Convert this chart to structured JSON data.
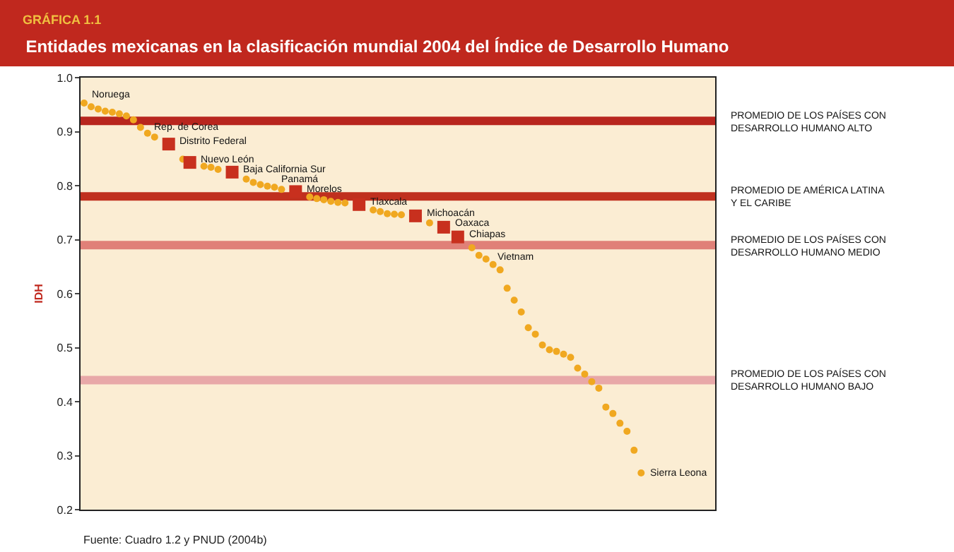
{
  "chart_data": {
    "type": "scatter",
    "title": "Entidades mexicanas en la clasificación mundial 2004 del Índice de Desarrollo Humano",
    "ylabel": "IDH",
    "annotations": [
      "GRÁFICA 1.1",
      "Fuente: Cuadro 1.2 y PNUD (2004b)"
    ],
    "categories": [
      null,
      null,
      null,
      null,
      null,
      null,
      null,
      null,
      null,
      null,
      null,
      null,
      null,
      null,
      null,
      null,
      null,
      null,
      null,
      null,
      null,
      null,
      null,
      null,
      null,
      null,
      null,
      null,
      null,
      null,
      null,
      null,
      null,
      null,
      null,
      null,
      null,
      null,
      null,
      null,
      null,
      null,
      null,
      null,
      null,
      null,
      null,
      null,
      null,
      null,
      null,
      null,
      null,
      null,
      null,
      null,
      null,
      null,
      null,
      null,
      null,
      null,
      null,
      null,
      null,
      null,
      null,
      null,
      null,
      null,
      null,
      null,
      null,
      null,
      null,
      null,
      null,
      null,
      null,
      null,
      null,
      null,
      null,
      null,
      null,
      null,
      null,
      null,
      null,
      null
    ],
    "series": [
      {
        "color": "#f0a820",
        "marker": "circle",
        "values": [
          null,
          0.946,
          0.942,
          0.938,
          0.936,
          0.933,
          0.929,
          0.922,
          0.908,
          0.897,
          null,
          null,
          null,
          null,
          0.849,
          null,
          null,
          0.836,
          0.834,
          0.83,
          null,
          null,
          null,
          0.812,
          0.806,
          0.802,
          0.799,
          0.797,
          null,
          null,
          null,
          null,
          0.779,
          0.776,
          0.774,
          0.771,
          0.769,
          0.768,
          null,
          null,
          null,
          0.755,
          0.752,
          0.748,
          0.747,
          0.746,
          null,
          null,
          null,
          0.731,
          null,
          null,
          null,
          null,
          null,
          null,
          0.671,
          0.664,
          0.654,
          0.644,
          0.61,
          0.588,
          0.566,
          0.537,
          0.525,
          0.505,
          0.496,
          0.493,
          0.488,
          0.482,
          0.462,
          0.451,
          0.437,
          0.425,
          0.39,
          0.378,
          0.36,
          0.345,
          0.31,
          null,
          null,
          null,
          null,
          null,
          null,
          null,
          null,
          null,
          null,
          null
        ]
      },
      {
        "name": "Noruega",
        "color": "#f0a820",
        "marker": "circle",
        "values": [
          0.953,
          null,
          null,
          null,
          null,
          null,
          null,
          null,
          null,
          null,
          null,
          null,
          null,
          null,
          null,
          null,
          null,
          null,
          null,
          null,
          null,
          null,
          null,
          null,
          null,
          null,
          null,
          null,
          null,
          null,
          null,
          null,
          null,
          null,
          null,
          null,
          null,
          null,
          null,
          null,
          null,
          null,
          null,
          null,
          null,
          null,
          null,
          null,
          null,
          null,
          null,
          null,
          null,
          null,
          null,
          null,
          null,
          null,
          null,
          null,
          null,
          null,
          null,
          null,
          null,
          null,
          null,
          null,
          null,
          null,
          null,
          null,
          null,
          null,
          null,
          null,
          null,
          null,
          null,
          null,
          null,
          null,
          null,
          null,
          null,
          null,
          null,
          null,
          null,
          null
        ]
      },
      {
        "name": "Rep. de Corea",
        "color": "#f0a820",
        "marker": "circle",
        "values": [
          null,
          null,
          null,
          null,
          null,
          null,
          null,
          null,
          null,
          null,
          0.89,
          null,
          null,
          null,
          null,
          null,
          null,
          null,
          null,
          null,
          null,
          null,
          null,
          null,
          null,
          null,
          null,
          null,
          null,
          null,
          null,
          null,
          null,
          null,
          null,
          null,
          null,
          null,
          null,
          null,
          null,
          null,
          null,
          null,
          null,
          null,
          null,
          null,
          null,
          null,
          null,
          null,
          null,
          null,
          null,
          null,
          null,
          null,
          null,
          null,
          null,
          null,
          null,
          null,
          null,
          null,
          null,
          null,
          null,
          null,
          null,
          null,
          null,
          null,
          null,
          null,
          null,
          null,
          null,
          null,
          null,
          null,
          null,
          null,
          null,
          null,
          null,
          null,
          null,
          null
        ]
      },
      {
        "name": "Distrito Federal",
        "color": "#c8301e",
        "marker": "square",
        "values": [
          null,
          null,
          null,
          null,
          null,
          null,
          null,
          null,
          null,
          null,
          null,
          null,
          0.877,
          null,
          null,
          null,
          null,
          null,
          null,
          null,
          null,
          null,
          null,
          null,
          null,
          null,
          null,
          null,
          null,
          null,
          null,
          null,
          null,
          null,
          null,
          null,
          null,
          null,
          null,
          null,
          null,
          null,
          null,
          null,
          null,
          null,
          null,
          null,
          null,
          null,
          null,
          null,
          null,
          null,
          null,
          null,
          null,
          null,
          null,
          null,
          null,
          null,
          null,
          null,
          null,
          null,
          null,
          null,
          null,
          null,
          null,
          null,
          null,
          null,
          null,
          null,
          null,
          null,
          null,
          null,
          null,
          null,
          null,
          null,
          null,
          null,
          null,
          null,
          null,
          null
        ]
      },
      {
        "name": "Nuevo León",
        "color": "#c8301e",
        "marker": "square",
        "values": [
          null,
          null,
          null,
          null,
          null,
          null,
          null,
          null,
          null,
          null,
          null,
          null,
          null,
          null,
          null,
          0.843,
          null,
          null,
          null,
          null,
          null,
          null,
          null,
          null,
          null,
          null,
          null,
          null,
          null,
          null,
          null,
          null,
          null,
          null,
          null,
          null,
          null,
          null,
          null,
          null,
          null,
          null,
          null,
          null,
          null,
          null,
          null,
          null,
          null,
          null,
          null,
          null,
          null,
          null,
          null,
          null,
          null,
          null,
          null,
          null,
          null,
          null,
          null,
          null,
          null,
          null,
          null,
          null,
          null,
          null,
          null,
          null,
          null,
          null,
          null,
          null,
          null,
          null,
          null,
          null,
          null,
          null,
          null,
          null,
          null,
          null,
          null,
          null,
          null,
          null
        ]
      },
      {
        "name": "Baja California Sur",
        "color": "#c8301e",
        "marker": "square",
        "values": [
          null,
          null,
          null,
          null,
          null,
          null,
          null,
          null,
          null,
          null,
          null,
          null,
          null,
          null,
          null,
          null,
          null,
          null,
          null,
          null,
          null,
          0.825,
          null,
          null,
          null,
          null,
          null,
          null,
          null,
          null,
          null,
          null,
          null,
          null,
          null,
          null,
          null,
          null,
          null,
          null,
          null,
          null,
          null,
          null,
          null,
          null,
          null,
          null,
          null,
          null,
          null,
          null,
          null,
          null,
          null,
          null,
          null,
          null,
          null,
          null,
          null,
          null,
          null,
          null,
          null,
          null,
          null,
          null,
          null,
          null,
          null,
          null,
          null,
          null,
          null,
          null,
          null,
          null,
          null,
          null,
          null,
          null,
          null,
          null,
          null,
          null,
          null,
          null,
          null,
          null
        ]
      },
      {
        "name": "Panamá",
        "color": "#f0a820",
        "marker": "circle",
        "values": [
          null,
          null,
          null,
          null,
          null,
          null,
          null,
          null,
          null,
          null,
          null,
          null,
          null,
          null,
          null,
          null,
          null,
          null,
          null,
          null,
          null,
          null,
          null,
          null,
          null,
          null,
          null,
          null,
          0.793,
          null,
          null,
          null,
          null,
          null,
          null,
          null,
          null,
          null,
          null,
          null,
          null,
          null,
          null,
          null,
          null,
          null,
          null,
          null,
          null,
          null,
          null,
          null,
          null,
          null,
          null,
          null,
          null,
          null,
          null,
          null,
          null,
          null,
          null,
          null,
          null,
          null,
          null,
          null,
          null,
          null,
          null,
          null,
          null,
          null,
          null,
          null,
          null,
          null,
          null,
          null,
          null,
          null,
          null,
          null,
          null,
          null,
          null,
          null,
          null,
          null
        ]
      },
      {
        "name": "Morelos",
        "color": "#c8301e",
        "marker": "square",
        "values": [
          null,
          null,
          null,
          null,
          null,
          null,
          null,
          null,
          null,
          null,
          null,
          null,
          null,
          null,
          null,
          null,
          null,
          null,
          null,
          null,
          null,
          null,
          null,
          null,
          null,
          null,
          null,
          null,
          null,
          null,
          0.789,
          null,
          null,
          null,
          null,
          null,
          null,
          null,
          null,
          null,
          null,
          null,
          null,
          null,
          null,
          null,
          null,
          null,
          null,
          null,
          null,
          null,
          null,
          null,
          null,
          null,
          null,
          null,
          null,
          null,
          null,
          null,
          null,
          null,
          null,
          null,
          null,
          null,
          null,
          null,
          null,
          null,
          null,
          null,
          null,
          null,
          null,
          null,
          null,
          null,
          null,
          null,
          null,
          null,
          null,
          null,
          null,
          null,
          null,
          null
        ]
      },
      {
        "name": "Tlaxcala",
        "color": "#c8301e",
        "marker": "square",
        "values": [
          null,
          null,
          null,
          null,
          null,
          null,
          null,
          null,
          null,
          null,
          null,
          null,
          null,
          null,
          null,
          null,
          null,
          null,
          null,
          null,
          null,
          null,
          null,
          null,
          null,
          null,
          null,
          null,
          null,
          null,
          null,
          null,
          null,
          null,
          null,
          null,
          null,
          null,
          null,
          0.765,
          null,
          null,
          null,
          null,
          null,
          null,
          null,
          null,
          null,
          null,
          null,
          null,
          null,
          null,
          null,
          null,
          null,
          null,
          null,
          null,
          null,
          null,
          null,
          null,
          null,
          null,
          null,
          null,
          null,
          null,
          null,
          null,
          null,
          null,
          null,
          null,
          null,
          null,
          null,
          null,
          null,
          null,
          null,
          null,
          null,
          null,
          null,
          null,
          null,
          null
        ]
      },
      {
        "name": "Michoacán",
        "color": "#c8301e",
        "marker": "square",
        "values": [
          null,
          null,
          null,
          null,
          null,
          null,
          null,
          null,
          null,
          null,
          null,
          null,
          null,
          null,
          null,
          null,
          null,
          null,
          null,
          null,
          null,
          null,
          null,
          null,
          null,
          null,
          null,
          null,
          null,
          null,
          null,
          null,
          null,
          null,
          null,
          null,
          null,
          null,
          null,
          null,
          null,
          null,
          null,
          null,
          null,
          null,
          null,
          0.744,
          null,
          null,
          null,
          null,
          null,
          null,
          null,
          null,
          null,
          null,
          null,
          null,
          null,
          null,
          null,
          null,
          null,
          null,
          null,
          null,
          null,
          null,
          null,
          null,
          null,
          null,
          null,
          null,
          null,
          null,
          null,
          null,
          null,
          null,
          null,
          null,
          null,
          null,
          null,
          null,
          null,
          null
        ]
      },
      {
        "name": "Oaxaca",
        "color": "#c8301e",
        "marker": "square",
        "values": [
          null,
          null,
          null,
          null,
          null,
          null,
          null,
          null,
          null,
          null,
          null,
          null,
          null,
          null,
          null,
          null,
          null,
          null,
          null,
          null,
          null,
          null,
          null,
          null,
          null,
          null,
          null,
          null,
          null,
          null,
          null,
          null,
          null,
          null,
          null,
          null,
          null,
          null,
          null,
          null,
          null,
          null,
          null,
          null,
          null,
          null,
          null,
          null,
          null,
          null,
          null,
          0.723,
          null,
          null,
          null,
          null,
          null,
          null,
          null,
          null,
          null,
          null,
          null,
          null,
          null,
          null,
          null,
          null,
          null,
          null,
          null,
          null,
          null,
          null,
          null,
          null,
          null,
          null,
          null,
          null,
          null,
          null,
          null,
          null,
          null,
          null,
          null,
          null,
          null,
          null
        ]
      },
      {
        "name": "Chiapas",
        "color": "#c8301e",
        "marker": "square",
        "values": [
          null,
          null,
          null,
          null,
          null,
          null,
          null,
          null,
          null,
          null,
          null,
          null,
          null,
          null,
          null,
          null,
          null,
          null,
          null,
          null,
          null,
          null,
          null,
          null,
          null,
          null,
          null,
          null,
          null,
          null,
          null,
          null,
          null,
          null,
          null,
          null,
          null,
          null,
          null,
          null,
          null,
          null,
          null,
          null,
          null,
          null,
          null,
          null,
          null,
          null,
          null,
          null,
          null,
          0.705,
          null,
          null,
          null,
          null,
          null,
          null,
          null,
          null,
          null,
          null,
          null,
          null,
          null,
          null,
          null,
          null,
          null,
          null,
          null,
          null,
          null,
          null,
          null,
          null,
          null,
          null,
          null,
          null,
          null,
          null,
          null,
          null,
          null,
          null,
          null,
          null
        ]
      },
      {
        "name": "Vietnam",
        "color": "#f0a820",
        "marker": "circle",
        "values": [
          null,
          null,
          null,
          null,
          null,
          null,
          null,
          null,
          null,
          null,
          null,
          null,
          null,
          null,
          null,
          null,
          null,
          null,
          null,
          null,
          null,
          null,
          null,
          null,
          null,
          null,
          null,
          null,
          null,
          null,
          null,
          null,
          null,
          null,
          null,
          null,
          null,
          null,
          null,
          null,
          null,
          null,
          null,
          null,
          null,
          null,
          null,
          null,
          null,
          null,
          null,
          null,
          null,
          null,
          null,
          0.685,
          null,
          null,
          null,
          null,
          null,
          null,
          null,
          null,
          null,
          null,
          null,
          null,
          null,
          null,
          null,
          null,
          null,
          null,
          null,
          null,
          null,
          null,
          null,
          null,
          null,
          null,
          null,
          null,
          null,
          null,
          null,
          null,
          null,
          null
        ]
      },
      {
        "name": "Sierra Leona",
        "color": "#f0a820",
        "marker": "circle",
        "values": [
          null,
          null,
          null,
          null,
          null,
          null,
          null,
          null,
          null,
          null,
          null,
          null,
          null,
          null,
          null,
          null,
          null,
          null,
          null,
          null,
          null,
          null,
          null,
          null,
          null,
          null,
          null,
          null,
          null,
          null,
          null,
          null,
          null,
          null,
          null,
          null,
          null,
          null,
          null,
          null,
          null,
          null,
          null,
          null,
          null,
          null,
          null,
          null,
          null,
          null,
          null,
          null,
          null,
          null,
          null,
          null,
          null,
          null,
          null,
          null,
          null,
          null,
          null,
          null,
          null,
          null,
          null,
          null,
          null,
          null,
          null,
          null,
          null,
          null,
          null,
          null,
          null,
          null,
          null,
          0.268,
          null,
          null,
          null,
          null,
          null,
          null,
          null,
          null,
          null,
          null
        ]
      }
    ],
    "ylim": [
      0.2,
      1.0
    ],
    "yticks": [
      0.2,
      0.3,
      0.4,
      0.5,
      0.6,
      0.7,
      0.8,
      0.9,
      {
        "value": 1.0,
        "label": "1.0"
      }
    ],
    "tick_labels": "y",
    "grid": false,
    "legend": false,
    "ref_lines": [
      {
        "axis": "y",
        "value": 0.92,
        "label": "PROMEDIO DE LOS PAÍSES CON\nDESARROLLO HUMANO ALTO",
        "color": "#b8261e"
      },
      {
        "axis": "y",
        "value": 0.78,
        "label": "PROMEDIO DE AMÉRICA LATINA\nY EL CARIBE",
        "color": "#c0301e"
      },
      {
        "axis": "y",
        "value": 0.69,
        "label": "PROMEDIO DE LOS PAÍSES CON\nDESARROLLO HUMANO MEDIO",
        "color": "#e08078"
      },
      {
        "axis": "y",
        "value": 0.44,
        "label": "PROMEDIO DE LOS PAÍSES CON\nDESARROLLO HUMANO BAJO",
        "color": "#e8a8a8"
      }
    ]
  }
}
